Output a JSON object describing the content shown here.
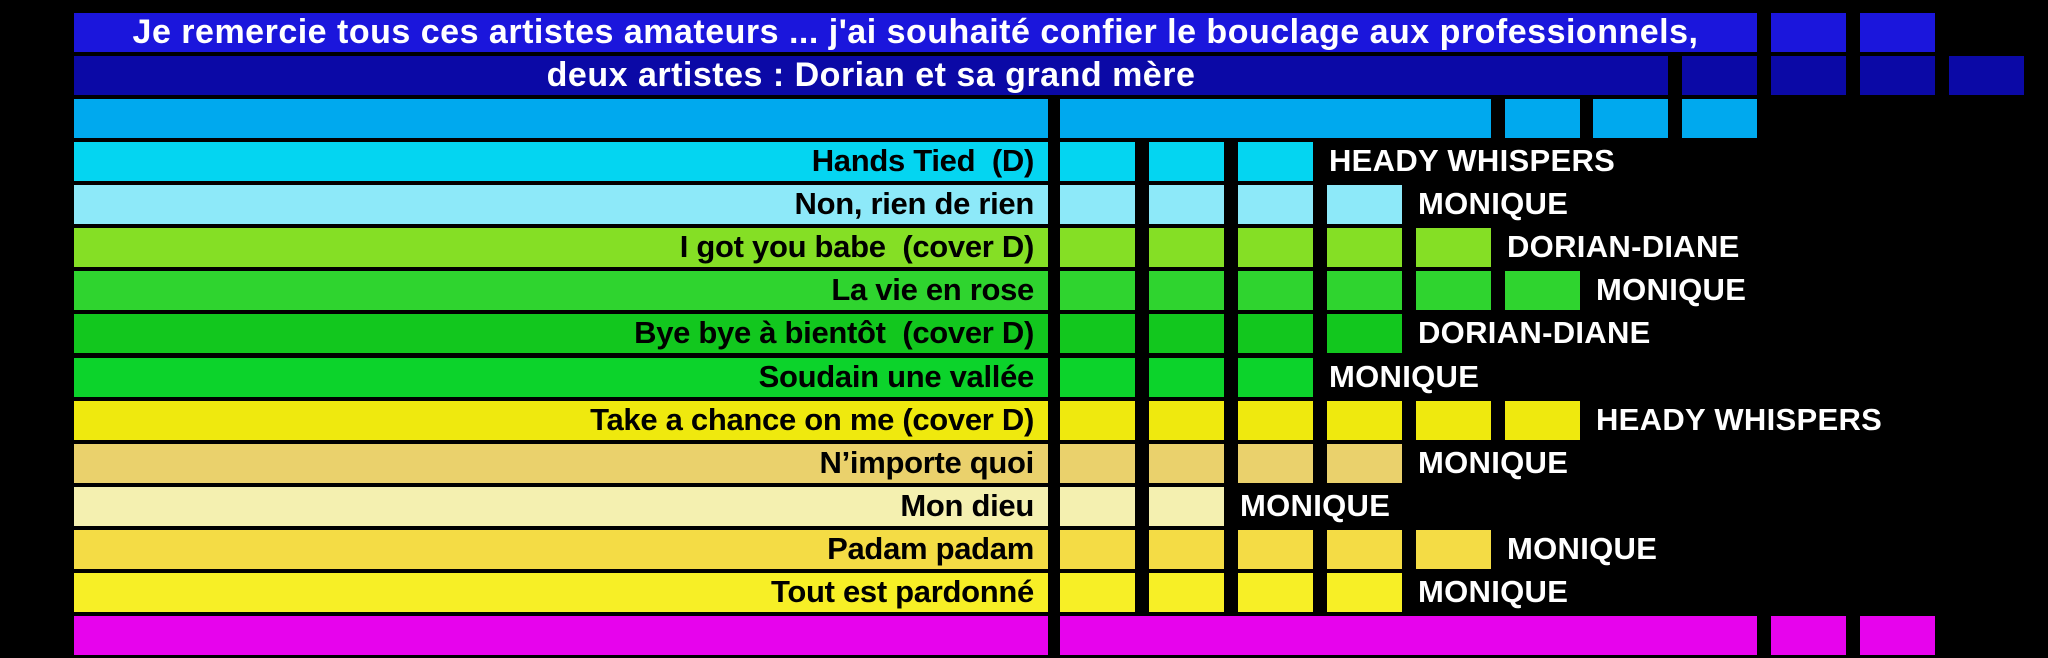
{
  "title": {
    "line1": "Je remercie tous ces artistes amateurs ... j'ai souhaité confier le bouclage aux professionnels,",
    "line2": "deux artistes : Dorian et sa grand mère",
    "line1_color": "#1B16DC",
    "line2_color": "#0B09A6",
    "line1_bar_end_col": 8,
    "line1_extra_cols": [
      9,
      10
    ],
    "line2_bar_end_col": 7,
    "line2_extra_cols": [
      8,
      9,
      10,
      11
    ]
  },
  "header_row": {
    "color": "#00A9EE",
    "bar_end_col": 5,
    "extra_cols": [
      6,
      7,
      8
    ]
  },
  "songs": [
    {
      "title": "Hands Tied  (D)",
      "artist": "HEADY WHISPERS",
      "cells": 3,
      "color": "#04D5F1"
    },
    {
      "title": "Non, rien de rien",
      "artist": "MONIQUE",
      "cells": 4,
      "color": "#8DE9F9"
    },
    {
      "title": "I got you babe  (cover D)",
      "artist": "DORIAN-DIANE",
      "cells": 5,
      "color": "#85DF25"
    },
    {
      "title": "La vie en rose",
      "artist": "MONIQUE",
      "cells": 6,
      "color": "#2FD42F"
    },
    {
      "title": "Bye bye à bientôt  (cover D)",
      "artist": "DORIAN-DIANE",
      "cells": 4,
      "color": "#12C71E"
    },
    {
      "title": "Soudain une vallée",
      "artist": "MONIQUE",
      "cells": 3,
      "color": "#0CD32B"
    },
    {
      "title": "Take a chance on me (cover D)",
      "artist": "HEADY WHISPERS",
      "cells": 6,
      "color": "#EFE90E"
    },
    {
      "title": "N’importe quoi",
      "artist": "MONIQUE",
      "cells": 4,
      "color": "#EAD16C"
    },
    {
      "title": "Mon dieu",
      "artist": "MONIQUE",
      "cells": 2,
      "color": "#F4F0B0"
    },
    {
      "title": "Padam padam",
      "artist": "MONIQUE",
      "cells": 5,
      "color": "#F4DC45"
    },
    {
      "title": "Tout est pardonné",
      "artist": "MONIQUE",
      "cells": 4,
      "color": "#F7EF26"
    }
  ],
  "footer_row": {
    "color": "#E703ED",
    "bar_end_col": 8,
    "extra_cols": [
      9,
      10
    ]
  },
  "text_colors": {
    "song": "#000000",
    "artist": "#FFFFFF",
    "title": "#FFFFFF"
  },
  "chart_data": {
    "type": "bar",
    "categories": [
      "Hands Tied  (D)",
      "Non, rien de rien",
      "I got you babe  (cover D)",
      "La vie en rose",
      "Bye bye à bientôt  (cover D)",
      "Soudain une vallée",
      "Take a chance on me (cover D)",
      "N’importe quoi",
      "Mon dieu",
      "Padam padam",
      "Tout est pardonné"
    ],
    "values": [
      3,
      4,
      5,
      6,
      4,
      3,
      6,
      4,
      2,
      5,
      4
    ],
    "bar_labels": [
      "HEADY WHISPERS",
      "MONIQUE",
      "DORIAN-DIANE",
      "MONIQUE",
      "DORIAN-DIANE",
      "MONIQUE",
      "HEADY WHISPERS",
      "MONIQUE",
      "MONIQUE",
      "MONIQUE",
      "MONIQUE"
    ],
    "title": "Je remercie tous ces artistes amateurs ... j'ai souhaité confier le bouclage aux professionnels, deux artistes : Dorian et sa grand mère",
    "xlabel": "",
    "ylabel": "",
    "legend_position": "none",
    "grid": false
  }
}
